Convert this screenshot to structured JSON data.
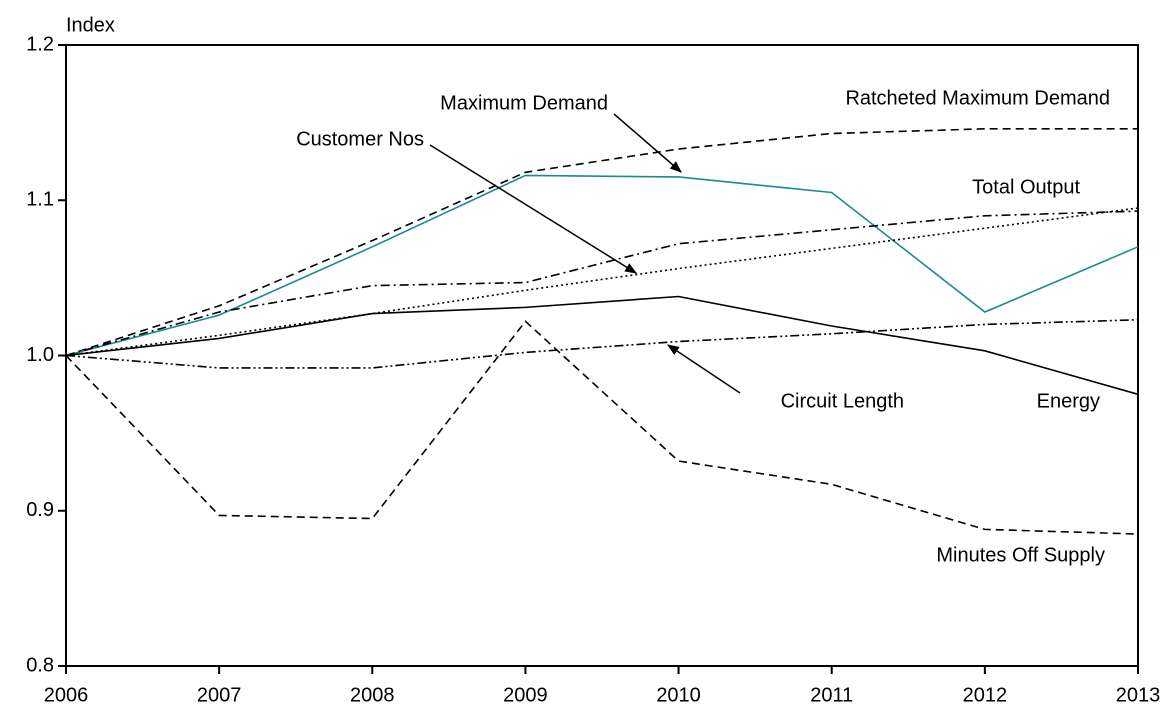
{
  "chart_data": {
    "type": "line",
    "ylabel": "Index",
    "x": [
      2006,
      2007,
      2008,
      2009,
      2010,
      2011,
      2012,
      2013
    ],
    "xlim": [
      2006,
      2013
    ],
    "xticks": [
      2006,
      2007,
      2008,
      2009,
      2010,
      2011,
      2012,
      2013
    ],
    "ylim": [
      0.8,
      1.2
    ],
    "yticks": [
      0.8,
      0.9,
      {
        "value": 1,
        "label": "1.0"
      },
      1.1,
      1.2
    ],
    "series": [
      {
        "name": "Ratcheted Maximum Demand",
        "color": "#000000",
        "dash": "8,5",
        "values": [
          1.0,
          1.032,
          1.074,
          1.118,
          1.133,
          1.143,
          1.146,
          1.146
        ]
      },
      {
        "name": "Maximum Demand",
        "color": "#1a8c8c",
        "dash": "none",
        "values": [
          1.0,
          1.026,
          1.07,
          1.116,
          1.115,
          1.105,
          1.028,
          1.07
        ]
      },
      {
        "name": "Total Output",
        "color": "#000000",
        "dash": "9,4,2,4",
        "values": [
          1.0,
          1.028,
          1.045,
          1.047,
          1.072,
          1.081,
          1.09,
          1.093
        ]
      },
      {
        "name": "Customer Nos",
        "color": "#000000",
        "dash": "2,3",
        "values": [
          1.0,
          1.013,
          1.027,
          1.042,
          1.056,
          1.069,
          1.082,
          1.095
        ]
      },
      {
        "name": "Energy",
        "color": "#000000",
        "dash": "none",
        "values": [
          1.0,
          1.011,
          1.027,
          1.031,
          1.038,
          1.019,
          1.003,
          0.975
        ]
      },
      {
        "name": "Circuit Length",
        "color": "#000000",
        "dash": "9,3,2,3,2,3",
        "values": [
          1.0,
          0.992,
          0.992,
          1.002,
          1.009,
          1.014,
          1.02,
          1.023
        ]
      },
      {
        "name": "Minutes Off Supply",
        "color": "#000000",
        "dash": "8,5",
        "values": [
          1.0,
          0.897,
          0.895,
          1.022,
          0.932,
          0.917,
          0.888,
          0.885
        ]
      }
    ]
  }
}
